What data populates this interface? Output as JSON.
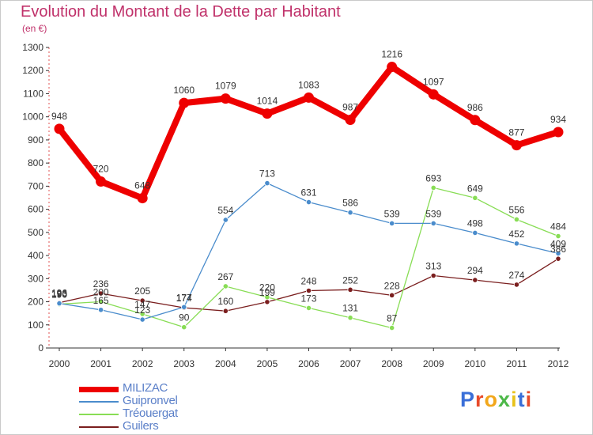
{
  "header": {
    "title": "Evolution du Montant de la Dette par Habitant",
    "subtitle": "(en €)"
  },
  "brand": {
    "letters": [
      "P",
      "r",
      "o",
      "x",
      "i",
      "t",
      "i"
    ],
    "colors": [
      "#3a6fd8",
      "#e84a2a",
      "#f2a71b",
      "#4cb848",
      "#e8c21a",
      "#3a6fd8",
      "#e84a2a"
    ]
  },
  "chart_data": {
    "type": "line",
    "title": "Evolution du Montant de la Dette par Habitant",
    "subtitle": "(en €)",
    "xlabel": "",
    "ylabel": "",
    "x": [
      "2000",
      "2001",
      "2002",
      "2003",
      "2004",
      "2005",
      "2006",
      "2007",
      "2008",
      "2009",
      "2010",
      "2011",
      "2012"
    ],
    "ylim": [
      0,
      1300
    ],
    "yticks": [
      0,
      100,
      200,
      300,
      400,
      500,
      600,
      700,
      800,
      900,
      1000,
      1100,
      1200,
      1300
    ],
    "grid": false,
    "legend": "bottom-left",
    "series": [
      {
        "name": "MILIZAC",
        "color": "#ee0000",
        "values": [
          948,
          720,
          648,
          1060,
          1079,
          1014,
          1083,
          987,
          1216,
          1097,
          986,
          877,
          934
        ],
        "labels": [
          "948",
          "720",
          "648",
          "1060",
          "1079",
          "1014",
          "1083",
          "987",
          "1216",
          "1097",
          "986",
          "877",
          "934"
        ]
      },
      {
        "name": "Guipronvel",
        "color": "#4a8ccc",
        "values": [
          193,
          165,
          123,
          177,
          554,
          713,
          631,
          586,
          539,
          539,
          498,
          452,
          409
        ],
        "labels": [
          "193",
          "165",
          "123",
          "177",
          "554",
          "713",
          "631",
          "586",
          "539",
          "539",
          "498",
          "452",
          "409"
        ]
      },
      {
        "name": "Tréouergat",
        "color": "#88dd55",
        "values": [
          190,
          200,
          147,
          90,
          267,
          220,
          173,
          131,
          87,
          693,
          649,
          556,
          484
        ],
        "labels": [
          "190",
          "200",
          "147",
          "90",
          "267",
          "220",
          "173",
          "131",
          "87",
          "693",
          "649",
          "556",
          "484"
        ]
      },
      {
        "name": "Guilers",
        "color": "#7a1e1e",
        "values": [
          196,
          236,
          205,
          174,
          160,
          199,
          248,
          252,
          228,
          313,
          294,
          274,
          386
        ],
        "labels": [
          "196",
          "236",
          "205",
          "174",
          "160",
          "199",
          "248",
          "252",
          "228",
          "313",
          "294",
          "274",
          "386"
        ]
      }
    ]
  }
}
